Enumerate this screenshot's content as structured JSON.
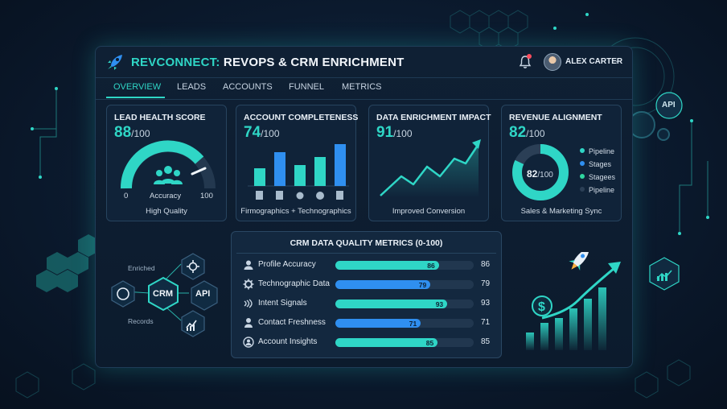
{
  "app": {
    "title_accent": "REVCONNECT:",
    "title_rest": " REVOPS & CRM ENRICHMENT"
  },
  "user": {
    "name": "ALEX CARTER"
  },
  "tabs": [
    {
      "label": "OVERVIEW",
      "active": true
    },
    {
      "label": "LEADS"
    },
    {
      "label": "ACCOUNTS"
    },
    {
      "label": "FUNNEL"
    },
    {
      "label": "METRICS"
    }
  ],
  "cards": {
    "lead_health": {
      "title": "LEAD HEALTH SCORE",
      "score": "88",
      "denom": "/100",
      "min": "0",
      "max": "100",
      "center_label": "Accuracy",
      "footer": "High Quality"
    },
    "account_completeness": {
      "title": "ACCOUNT COMPLETENESS",
      "score": "74",
      "denom": "/100",
      "footer": "Firmographics + Technographics"
    },
    "enrichment_impact": {
      "title": "DATA ENRICHMENT IMPACT",
      "score": "91",
      "denom": "/100",
      "footer": "Improved Conversion"
    },
    "revenue_alignment": {
      "title": "REVENUE ALIGNMENT",
      "score": "82",
      "denom": "/100",
      "donut_score": "82",
      "donut_denom": "/100",
      "legend": [
        {
          "label": "Pipeline",
          "color": "#2fd6c6"
        },
        {
          "label": "Stages",
          "color": "#2f8ff0"
        },
        {
          "label": "Stagees",
          "color": "#2fd6a0"
        },
        {
          "label": "Pipeline",
          "color": "#2b3f56"
        }
      ],
      "footer": "Sales & Marketing Sync"
    }
  },
  "metrics": {
    "title": "CRM DATA QUALITY METRICS (0-100)",
    "rows": [
      {
        "label": "Profile Accuracy",
        "value": "86",
        "color": "#2fd6c6",
        "icon": "user-icon"
      },
      {
        "label": "Technographic Data",
        "value": "79",
        "color": "#2f8ff0",
        "icon": "gear-icon"
      },
      {
        "label": "Intent Signals",
        "value": "93",
        "color": "#2fd6c6",
        "icon": "signal-icon"
      },
      {
        "label": "Contact Freshness",
        "value": "71",
        "color": "#2f8ff0",
        "icon": "person-icon"
      },
      {
        "label": "Account Insights",
        "value": "85",
        "color": "#2fd6c6",
        "icon": "search-user-icon"
      }
    ]
  },
  "network": {
    "center": "CRM",
    "api": "API",
    "enriched": "Enriched",
    "records": "Records"
  },
  "deco": {
    "api_badge": "API"
  },
  "colors": {
    "accent": "#2fd6c6",
    "blue": "#2f8ff0",
    "alert": "#ff4d5e"
  }
}
